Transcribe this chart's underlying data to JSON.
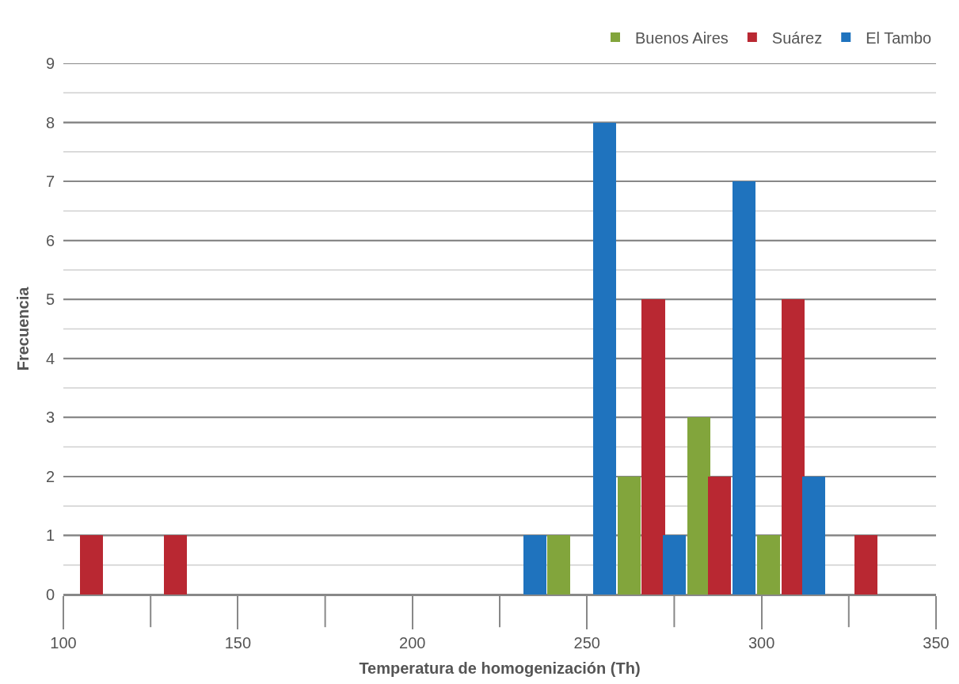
{
  "chart_data": {
    "type": "bar",
    "xlabel": "Temperatura de homogenización (Th)",
    "ylabel": "Frecuencia",
    "series": [
      {
        "name": "Buenos Aires",
        "color": "#82a53c",
        "x": [
          242,
          262,
          282,
          302
        ],
        "values": [
          1,
          2,
          3,
          1
        ]
      },
      {
        "name": "Suárez",
        "color": "#b92832",
        "x": [
          108,
          132,
          269,
          288,
          309,
          330
        ],
        "values": [
          1,
          1,
          5,
          2,
          5,
          1
        ]
      },
      {
        "name": "El Tambo",
        "color": "#1f73be",
        "x": [
          235,
          255,
          275,
          295,
          315
        ],
        "values": [
          1,
          8,
          1,
          7,
          2
        ]
      }
    ],
    "xlim": [
      100,
      350
    ],
    "xticks": [
      100,
      150,
      200,
      250,
      300,
      350
    ],
    "ylim": [
      0,
      9
    ],
    "yticks": [
      0,
      1,
      2,
      3,
      4,
      5,
      6,
      7,
      8,
      9
    ],
    "grid": "y",
    "legend": "top right"
  }
}
